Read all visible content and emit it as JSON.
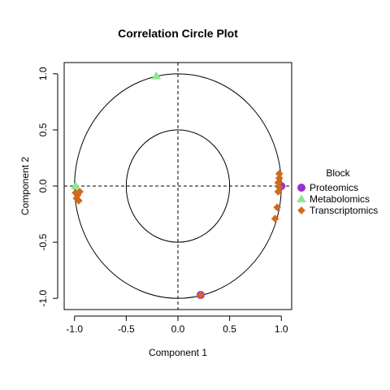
{
  "chart_data": {
    "type": "scatter",
    "title": "Correlation Circle Plot",
    "xlabel": "Component  1",
    "ylabel": "Component  2",
    "xlim": [
      -1.1,
      1.1
    ],
    "ylim": [
      -1.1,
      1.1
    ],
    "x_ticks": [
      -1.0,
      -0.5,
      0.0,
      0.5,
      1.0
    ],
    "x_tick_labels": [
      "-1.0",
      "-0.5",
      "0.0",
      "0.5",
      "1.0"
    ],
    "y_ticks": [
      -1.0,
      -0.5,
      0.0,
      0.5,
      1.0
    ],
    "y_tick_labels": [
      "-1.0",
      "-0.5",
      "0.0",
      "0.5",
      "1.0"
    ],
    "circles": [
      1.0,
      0.5
    ],
    "reference_lines": {
      "x": 0,
      "y": 0,
      "style": "dashed"
    },
    "grid": false,
    "legend": {
      "title": "Block",
      "placement": "right"
    },
    "series": [
      {
        "name": "Proteomics",
        "marker": "circle",
        "color": "#9b30d0",
        "points": [
          {
            "x": 1.0,
            "y": 0.0
          },
          {
            "x": 0.22,
            "y": -0.97
          }
        ]
      },
      {
        "name": "Metabolomics",
        "marker": "triangle",
        "color": "#8ee88e",
        "points": [
          {
            "x": -0.21,
            "y": 0.98
          },
          {
            "x": -0.99,
            "y": 0.0
          }
        ]
      },
      {
        "name": "Transcriptomics",
        "marker": "diamond",
        "color": "#d2691e",
        "points": [
          {
            "x": -0.95,
            "y": -0.05
          },
          {
            "x": -0.97,
            "y": -0.08
          },
          {
            "x": -0.99,
            "y": -0.06
          },
          {
            "x": -0.96,
            "y": -0.13
          },
          {
            "x": -0.98,
            "y": -0.11
          },
          {
            "x": 0.98,
            "y": 0.11
          },
          {
            "x": 0.98,
            "y": 0.07
          },
          {
            "x": 0.97,
            "y": 0.03
          },
          {
            "x": 0.98,
            "y": -0.01
          },
          {
            "x": 0.97,
            "y": -0.05
          },
          {
            "x": 0.96,
            "y": -0.19
          },
          {
            "x": 0.94,
            "y": -0.29
          },
          {
            "x": 0.22,
            "y": -0.97
          }
        ]
      }
    ]
  }
}
